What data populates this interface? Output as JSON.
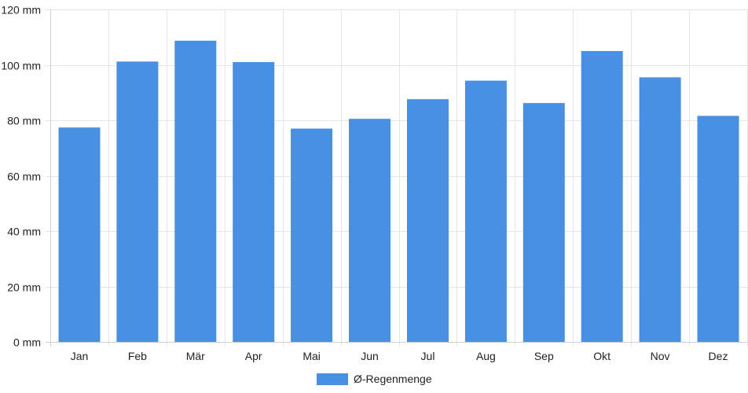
{
  "chart_data": {
    "type": "bar",
    "categories": [
      "Jan",
      "Feb",
      "Mär",
      "Apr",
      "Mai",
      "Jun",
      "Jul",
      "Aug",
      "Sep",
      "Okt",
      "Nov",
      "Dez"
    ],
    "series": [
      {
        "name": "Ø-Regenmenge",
        "color": "#4a90e2",
        "values": [
          77.4,
          101.2,
          108.7,
          101.0,
          77.0,
          80.5,
          87.6,
          94.3,
          86.2,
          105.0,
          95.5,
          81.6
        ]
      }
    ],
    "title": "",
    "xlabel": "",
    "ylabel": "",
    "ylim": [
      0,
      120
    ],
    "yticks": [
      "0 mm",
      "20 mm",
      "40 mm",
      "60 mm",
      "80 mm",
      "100 mm",
      "120 mm"
    ],
    "grid": true,
    "legend": {
      "position": "bottom-center"
    }
  }
}
